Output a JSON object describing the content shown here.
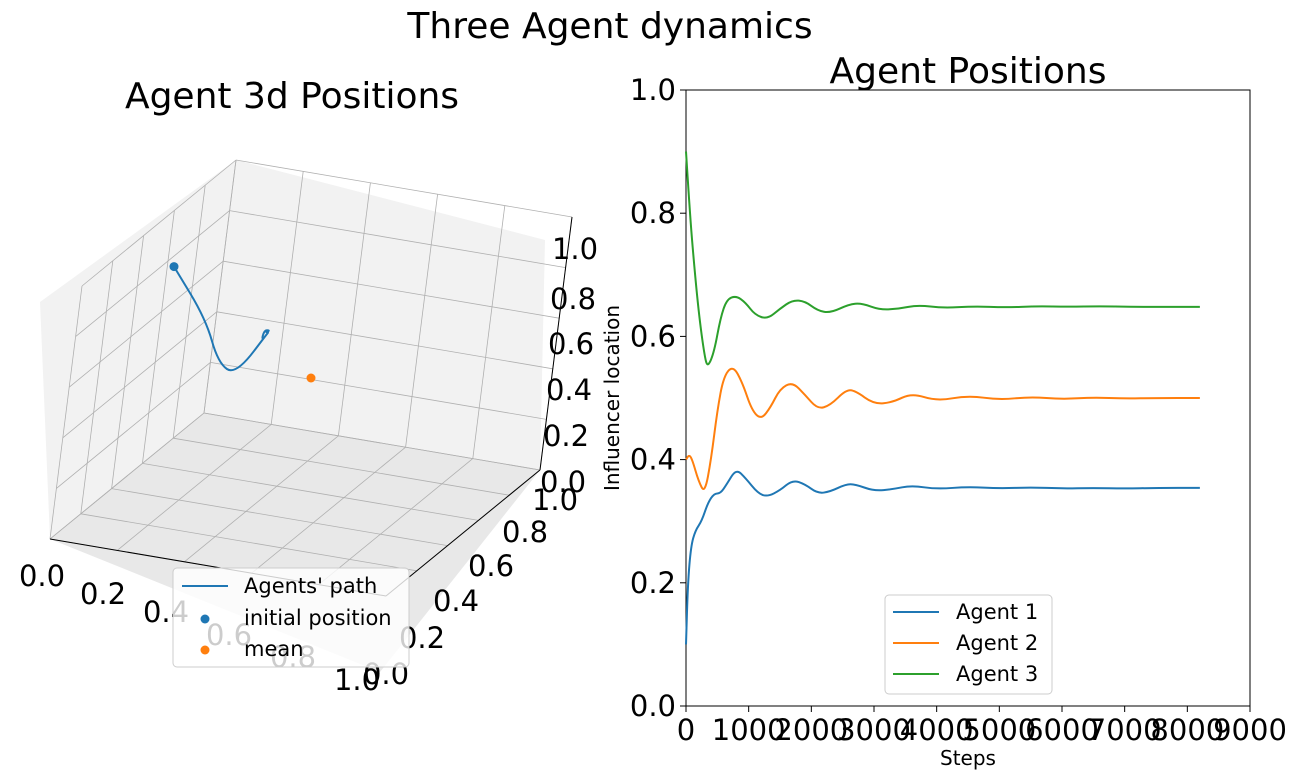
{
  "figure": {
    "suptitle": "Three Agent dynamics"
  },
  "colors": {
    "agent1": "#1f77b4",
    "agent2": "#ff7f0e",
    "agent3": "#2ca02c",
    "pane_left": "#f2f2f2",
    "pane_back": "#f2f2f2",
    "pane_floor": "#e8e8e8",
    "grid": "#b0b0b0"
  },
  "chart_data": [
    {
      "type": "line3d",
      "title": "Agent 3d Positions",
      "xlim": [
        0,
        1
      ],
      "ylim": [
        0,
        1
      ],
      "zlim": [
        0,
        1
      ],
      "x_ticks": [
        "0.0",
        "0.2",
        "0.4",
        "0.6",
        "0.8",
        "1.0"
      ],
      "y_ticks": [
        "0.0",
        "0.2",
        "0.4",
        "0.6",
        "0.8",
        "1.0"
      ],
      "z_ticks": [
        "0.0",
        "0.2",
        "0.4",
        "0.6",
        "0.8",
        "1.0"
      ],
      "grid": true,
      "legend_position": "lower-center",
      "legend": [
        "Agents' path",
        "initial position",
        "mean"
      ],
      "path": {
        "x": [
          0.1,
          0.2,
          0.28,
          0.34,
          0.36,
          0.35,
          0.35,
          0.36,
          0.355,
          0.352,
          0.352
        ],
        "y": [
          0.4,
          0.43,
          0.36,
          0.35,
          0.52,
          0.48,
          0.49,
          0.505,
          0.498,
          0.5,
          0.5
        ],
        "z": [
          0.9,
          0.7,
          0.58,
          0.55,
          0.66,
          0.62,
          0.66,
          0.655,
          0.648,
          0.65,
          0.65
        ]
      },
      "initial_position": {
        "x": 0.1,
        "y": 0.4,
        "z": 0.9
      },
      "mean": {
        "x": 0.5,
        "y": 0.5,
        "z": 0.5
      }
    },
    {
      "type": "line",
      "title": "Agent Positions",
      "xlabel": "Steps",
      "ylabel": "Influencer location",
      "xlim": [
        0,
        9000
      ],
      "ylim": [
        0,
        1
      ],
      "x_ticks": [
        "0",
        "1000",
        "2000",
        "3000",
        "4000",
        "5000",
        "6000",
        "7000",
        "8000",
        "9000"
      ],
      "y_ticks": [
        "0.0",
        "0.2",
        "0.4",
        "0.6",
        "0.8",
        "1.0"
      ],
      "legend_position": "lower-center",
      "series": [
        {
          "name": "Agent 1",
          "color": "#1f77b4",
          "x": [
            0,
            30,
            80,
            150,
            250,
            350,
            450,
            550,
            650,
            800,
            950,
            1150,
            1300,
            1500,
            1700,
            1900,
            2100,
            2300,
            2550,
            2700,
            3000,
            3300,
            3600,
            4000,
            4500,
            5000,
            5500,
            6000,
            6500,
            7000,
            7500,
            8200
          ],
          "y": [
            0.1,
            0.2,
            0.26,
            0.285,
            0.3,
            0.33,
            0.345,
            0.345,
            0.36,
            0.385,
            0.37,
            0.345,
            0.34,
            0.35,
            0.367,
            0.36,
            0.345,
            0.348,
            0.36,
            0.36,
            0.349,
            0.352,
            0.358,
            0.352,
            0.356,
            0.353,
            0.355,
            0.353,
            0.354,
            0.353,
            0.354,
            0.354
          ]
        },
        {
          "name": "Agent 2",
          "color": "#ff7f0e",
          "x": [
            0,
            50,
            100,
            200,
            300,
            400,
            500,
            600,
            750,
            900,
            1050,
            1200,
            1350,
            1500,
            1700,
            1900,
            2100,
            2300,
            2550,
            2700,
            3000,
            3300,
            3600,
            4000,
            4500,
            5000,
            5500,
            6000,
            6500,
            7000,
            7500,
            8200
          ],
          "y": [
            0.4,
            0.408,
            0.4,
            0.365,
            0.345,
            0.4,
            0.48,
            0.535,
            0.553,
            0.525,
            0.48,
            0.465,
            0.485,
            0.515,
            0.526,
            0.505,
            0.482,
            0.488,
            0.513,
            0.512,
            0.49,
            0.493,
            0.508,
            0.495,
            0.504,
            0.497,
            0.502,
            0.498,
            0.501,
            0.499,
            0.5,
            0.5
          ]
        },
        {
          "name": "Agent 3",
          "color": "#2ca02c",
          "x": [
            0,
            50,
            100,
            200,
            300,
            350,
            450,
            550,
            650,
            800,
            950,
            1100,
            1300,
            1500,
            1700,
            1900,
            2100,
            2300,
            2600,
            2800,
            3100,
            3400,
            3700,
            4100,
            4600,
            5100,
            5600,
            6100,
            6600,
            7100,
            7600,
            8200
          ],
          "y": [
            0.9,
            0.82,
            0.75,
            0.64,
            0.565,
            0.55,
            0.575,
            0.63,
            0.66,
            0.666,
            0.655,
            0.635,
            0.628,
            0.645,
            0.659,
            0.657,
            0.642,
            0.638,
            0.652,
            0.654,
            0.643,
            0.645,
            0.651,
            0.646,
            0.649,
            0.647,
            0.649,
            0.648,
            0.649,
            0.648,
            0.648,
            0.648
          ]
        }
      ]
    }
  ]
}
